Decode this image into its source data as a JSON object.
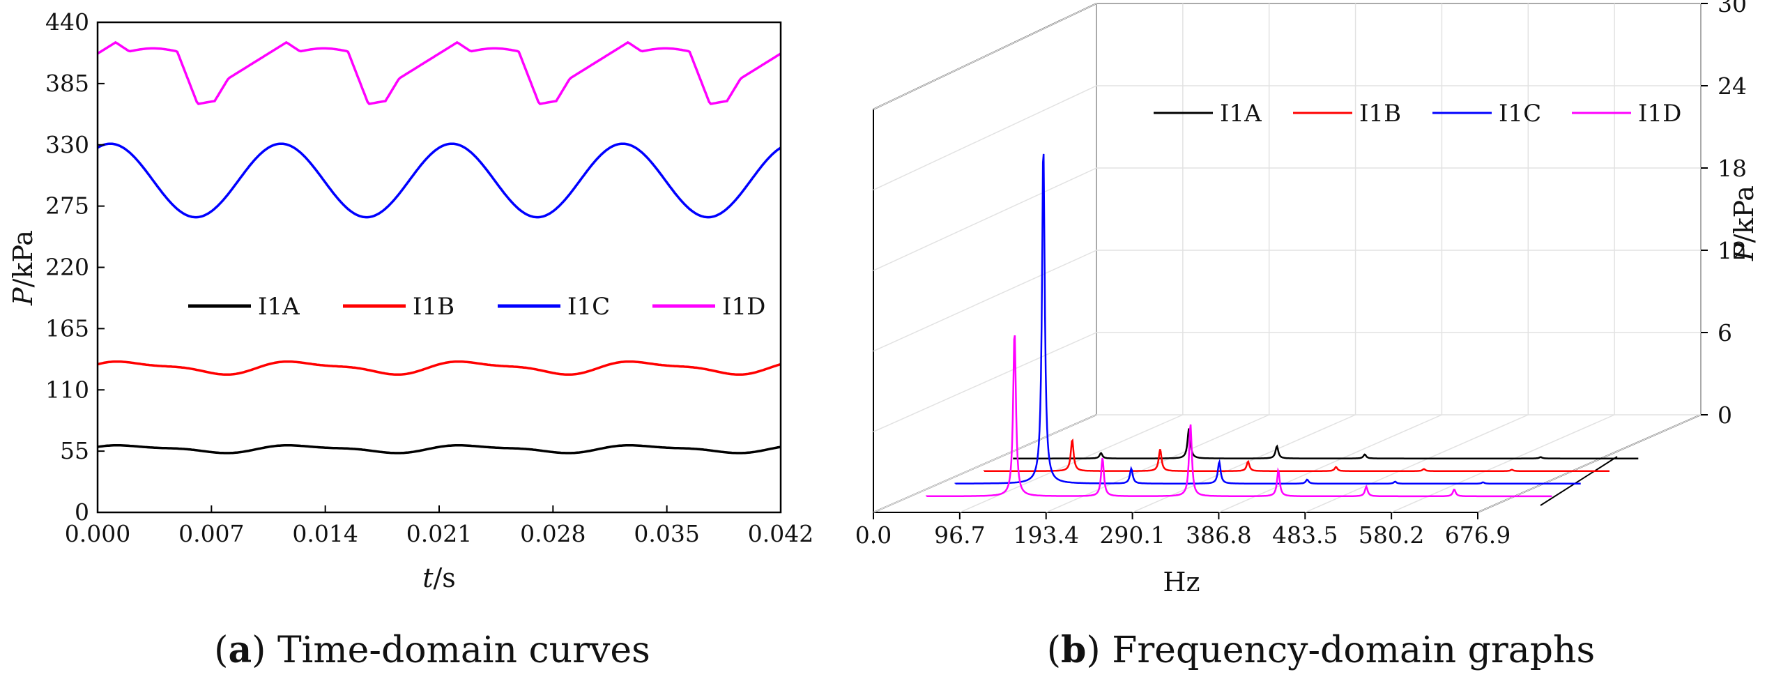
{
  "chart_data": [
    {
      "type": "line",
      "panel": "a",
      "caption": {
        "letter": "a",
        "text": "Time-domain curves"
      },
      "xlabel_var": "t",
      "xlabel_unit": "/s",
      "ylabel_var": "P",
      "ylabel_unit": "/kPa",
      "xlim": [
        0,
        0.042
      ],
      "ylim": [
        0,
        440
      ],
      "xticks": [
        "0.000",
        "0.007",
        "0.014",
        "0.021",
        "0.028",
        "0.035",
        "0.042"
      ],
      "yticks": [
        "0",
        "55",
        "110",
        "165",
        "220",
        "275",
        "330",
        "385",
        "440"
      ],
      "legend_position": "center",
      "series": [
        {
          "name": "I1A",
          "color": "#000000",
          "base": 57,
          "amp": 3,
          "period": 0.0105,
          "phase": 0.0
        },
        {
          "name": "I1B",
          "color": "#ff0000",
          "base": 130,
          "amp": 5,
          "period": 0.0105,
          "phase": 0.0
        },
        {
          "name": "I1C",
          "color": "#0000ff",
          "base": 298,
          "amp": 33,
          "period": 0.0105,
          "phase": 0.0
        },
        {
          "name": "I1D",
          "color": "#ff00ff",
          "base": 395,
          "amp": 27,
          "period": 0.0105,
          "phase": 0.0
        }
      ]
    },
    {
      "type": "line",
      "panel": "b",
      "caption": {
        "letter": "b",
        "text": "Frequency-domain graphs"
      },
      "xlabel": "Hz",
      "ylabel_var": "P",
      "ylabel_unit": "/kPa",
      "xlim": [
        0,
        676.9
      ],
      "zlim": [
        0,
        30
      ],
      "xticks": [
        "0.0",
        "96.7",
        "193.4",
        "290.1",
        "386.8",
        "483.5",
        "580.2",
        "676.9"
      ],
      "zticks": [
        "0",
        "6",
        "12",
        "18",
        "24",
        "30"
      ],
      "legend_position": "top",
      "series": [
        {
          "name": "I1A",
          "color": "#000000",
          "peaks": [
            [
              95.2,
              0.4
            ],
            [
              190.4,
              2.2
            ],
            [
              285.6,
              0.9
            ],
            [
              380.8,
              0.3
            ],
            [
              571.2,
              0.1
            ]
          ]
        },
        {
          "name": "I1B",
          "color": "#ff0000",
          "peaks": [
            [
              95.2,
              2.3
            ],
            [
              190.4,
              1.6
            ],
            [
              285.6,
              0.7
            ],
            [
              380.8,
              0.3
            ],
            [
              476.0,
              0.15
            ],
            [
              571.2,
              0.1
            ]
          ]
        },
        {
          "name": "I1C",
          "color": "#0000ff",
          "peaks": [
            [
              95.2,
              24.8
            ],
            [
              190.4,
              1.1
            ],
            [
              285.6,
              1.6
            ],
            [
              380.8,
              0.3
            ],
            [
              476.0,
              0.15
            ],
            [
              571.2,
              0.1
            ]
          ]
        },
        {
          "name": "I1D",
          "color": "#ff00ff",
          "peaks": [
            [
              95.2,
              12.1
            ],
            [
              190.4,
              2.8
            ],
            [
              285.6,
              5.3
            ],
            [
              380.8,
              1.9
            ],
            [
              476.0,
              0.7
            ],
            [
              571.2,
              0.5
            ]
          ]
        }
      ]
    }
  ]
}
